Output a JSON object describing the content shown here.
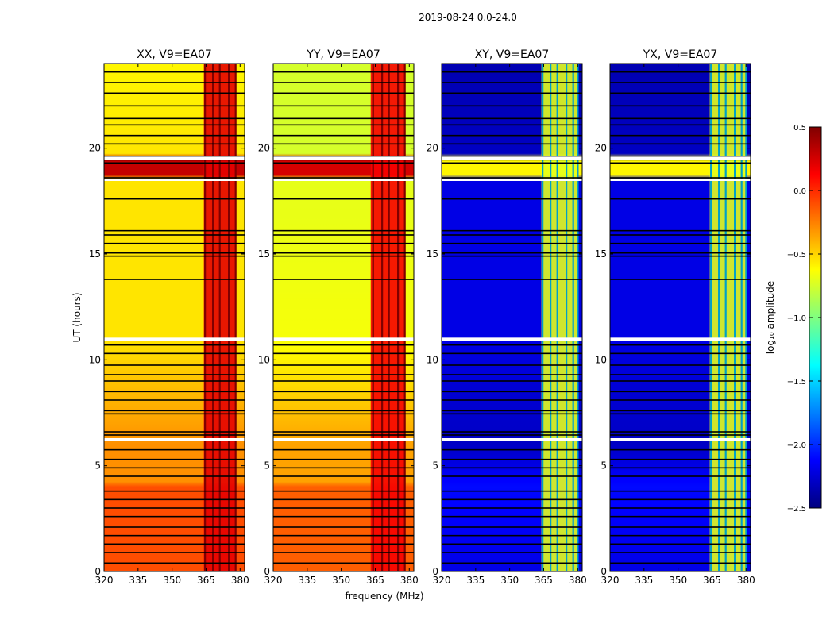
{
  "figure_title": "2019-08-24 0.0-24.0",
  "chart_data": {
    "type": "heatmap",
    "xlabel": "frequency (MHz)",
    "ylabel": "UT (hours)",
    "xlim": [
      320,
      382
    ],
    "ylim": [
      0,
      24
    ],
    "xticks": [
      320,
      335,
      350,
      365,
      380
    ],
    "yticks": [
      0,
      5,
      10,
      15,
      20
    ],
    "colorbar": {
      "label": "log₁₀ amplitude",
      "range": [
        -2.5,
        0.5
      ],
      "ticks": [
        "0.5",
        "0.0",
        "−0.5",
        "−1.0",
        "−1.5",
        "−2.0",
        "−2.5"
      ],
      "tick_values": [
        0.5,
        0.0,
        -0.5,
        -1.0,
        -1.5,
        -2.0,
        -2.5
      ],
      "colormap": "jet"
    },
    "flagged_rows_ut": [
      0.4,
      0.9,
      1.3,
      1.7,
      2.1,
      2.6,
      3.0,
      3.4,
      3.8,
      4.5,
      4.9,
      5.3,
      5.75,
      6.45,
      6.6,
      7.45,
      7.6,
      8.1,
      8.5,
      9.0,
      9.3,
      9.75,
      10.3,
      10.7,
      11.0,
      13.8,
      14.9,
      15.05,
      15.5,
      15.9,
      16.1,
      17.6,
      18.5,
      18.6,
      19.3,
      19.45,
      19.6,
      20.2,
      20.6,
      21.1,
      21.4,
      22.0,
      22.6,
      23.1,
      23.6
    ],
    "flagged_bands_ut": [
      [
        6.15,
        6.3
      ],
      [
        10.9,
        11.05
      ],
      [
        18.45,
        18.55
      ],
      [
        19.45,
        19.6
      ]
    ],
    "panels": [
      {
        "title": "XX, V9=EA07",
        "base_level_by_ut": [
          [
            0,
            -0.1
          ],
          [
            4,
            -0.1
          ],
          [
            4.01,
            -0.3
          ],
          [
            6,
            -0.3
          ],
          [
            11,
            -0.55
          ],
          [
            18.5,
            -0.55
          ],
          [
            18.6,
            0.3
          ],
          [
            19.5,
            0.3
          ],
          [
            19.51,
            -0.55
          ],
          [
            24,
            -0.6
          ]
        ],
        "rfi_band_mhz": [
          364,
          378
        ],
        "rfi_level": 0.2,
        "rfi_columns_mhz": [
          364.5,
          368,
          371,
          375,
          378
        ]
      },
      {
        "title": "YY, V9=EA07",
        "base_level_by_ut": [
          [
            0,
            -0.15
          ],
          [
            4,
            -0.15
          ],
          [
            4.01,
            -0.35
          ],
          [
            6,
            -0.35
          ],
          [
            11,
            -0.65
          ],
          [
            18.5,
            -0.7
          ],
          [
            18.6,
            0.25
          ],
          [
            19.5,
            0.25
          ],
          [
            19.51,
            -0.75
          ],
          [
            24,
            -0.75
          ]
        ],
        "rfi_band_mhz": [
          363,
          378
        ],
        "rfi_level": 0.15,
        "rfi_columns_mhz": [
          364,
          368,
          371,
          375,
          378
        ]
      },
      {
        "title": "XY, V9=EA07",
        "base_level_by_ut": [
          [
            0,
            -2.2
          ],
          [
            4,
            -2.1
          ],
          [
            6,
            -2.3
          ],
          [
            11,
            -2.2
          ],
          [
            18.5,
            -2.2
          ],
          [
            18.6,
            -0.6
          ],
          [
            19.5,
            -0.6
          ],
          [
            19.51,
            -2.3
          ],
          [
            24,
            -2.35
          ]
        ],
        "rfi_band_mhz": [
          364,
          380
        ],
        "rfi_level": -0.7,
        "rfi_columns_mhz": [
          364.5,
          368,
          371,
          375,
          378,
          380
        ]
      },
      {
        "title": "YX, V9=EA07",
        "base_level_by_ut": [
          [
            0,
            -2.2
          ],
          [
            4,
            -2.1
          ],
          [
            6,
            -2.3
          ],
          [
            11,
            -2.2
          ],
          [
            18.5,
            -2.2
          ],
          [
            18.6,
            -0.6
          ],
          [
            19.5,
            -0.6
          ],
          [
            19.51,
            -2.3
          ],
          [
            24,
            -2.35
          ]
        ],
        "rfi_band_mhz": [
          364,
          380
        ],
        "rfi_level": -0.7,
        "rfi_columns_mhz": [
          364.5,
          368,
          371,
          375,
          378,
          380
        ]
      }
    ]
  }
}
